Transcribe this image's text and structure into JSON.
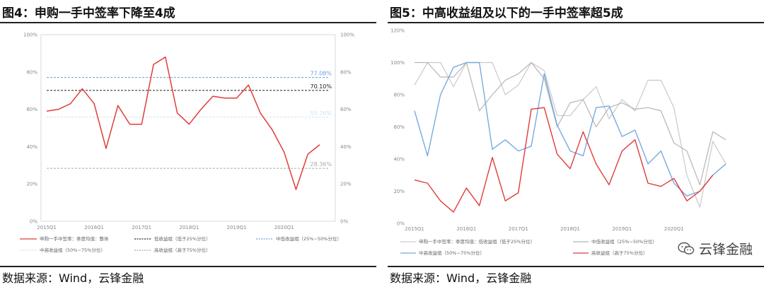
{
  "left": {
    "title": "图4：申购一手中签率下降至4成",
    "source": "数据来源：Wind，云锋金融"
  },
  "right": {
    "title": "图5：中高收益组及以下的一手中签率超5成",
    "source": "数据来源：Wind，云锋金融"
  },
  "watermark": {
    "text": "云锋金融",
    "icon": "wechat-icon"
  },
  "chart_data": [
    {
      "type": "line",
      "title": "",
      "ylim": [
        0,
        100
      ],
      "y_ticks": [
        "0%",
        "20%",
        "40%",
        "60%",
        "80%",
        "100%"
      ],
      "x_ticks": [
        "2015Q1",
        "2016Q1",
        "2017Q1",
        "2018Q1",
        "2019Q1",
        "2020Q1"
      ],
      "series": [
        {
          "name": "申购一手中签率：季度均值：整体",
          "color": "#e23b3b",
          "style": "solid",
          "values": [
            59,
            60,
            63,
            71,
            63,
            39,
            62,
            52,
            52,
            84,
            88,
            58,
            52,
            60,
            67,
            66,
            66,
            73,
            58,
            49,
            37,
            17,
            36,
            41
          ]
        }
      ],
      "reference_lines": [
        {
          "name": "低收益组（低于25%分位）",
          "value": 70.1,
          "label": "70.10%",
          "color": "#222222"
        },
        {
          "name": "中低收益组（25%~50%分位）",
          "value": 77.08,
          "label": "77.08%",
          "color": "#6fa1d8"
        },
        {
          "name": "中高收益组（50%~75%分位）",
          "value": 55.76,
          "label": "55.76%",
          "color": "#cfe0f1"
        },
        {
          "name": "高收益组（高于75%分位）",
          "value": 28.36,
          "label": "28.36%",
          "color": "#aaaaaa"
        }
      ]
    },
    {
      "type": "line",
      "title": "",
      "ylim": [
        0,
        120
      ],
      "y_ticks": [
        "0%",
        "20%",
        "40%",
        "60%",
        "80%",
        "100%",
        "120%"
      ],
      "x_ticks": [
        "2015Q1",
        "2016Q1",
        "2017Q1",
        "2018Q1",
        "2019Q1",
        "2020Q1"
      ],
      "series": [
        {
          "name": "申购一手中签率：季度均值：低收益组（低于25%分位）",
          "color": "#c9c9c9",
          "values": [
            86,
            100,
            100,
            85,
            100,
            100,
            100,
            80,
            86,
            100,
            95,
            67,
            67,
            77,
            85,
            65,
            77,
            70,
            89,
            89,
            72,
            30,
            10,
            51,
            37
          ]
        },
        {
          "name": "中低收益组（25%~50%分位）",
          "color": "#b5b5b5",
          "values": [
            100,
            100,
            91,
            91,
            100,
            70,
            80,
            89,
            93,
            100,
            90,
            60,
            75,
            77,
            60,
            72,
            75,
            71,
            72,
            70,
            50,
            45,
            24,
            57,
            52
          ]
        },
        {
          "name": "中高收益组（50%~75%分位）",
          "color": "#7aa9df",
          "values": [
            70,
            42,
            80,
            97,
            100,
            100,
            46,
            52,
            45,
            48,
            93,
            61,
            45,
            42,
            72,
            73,
            54,
            58,
            37,
            45,
            25,
            17,
            20,
            30,
            37
          ]
        },
        {
          "name": "高收益组（高于75%分位）",
          "color": "#e23b3b",
          "values": [
            27,
            25,
            14,
            7,
            22,
            11,
            41,
            14,
            19,
            71,
            72,
            43,
            34,
            57,
            37,
            24,
            45,
            52,
            25,
            23,
            28,
            14,
            20,
            30
          ]
        }
      ]
    }
  ]
}
